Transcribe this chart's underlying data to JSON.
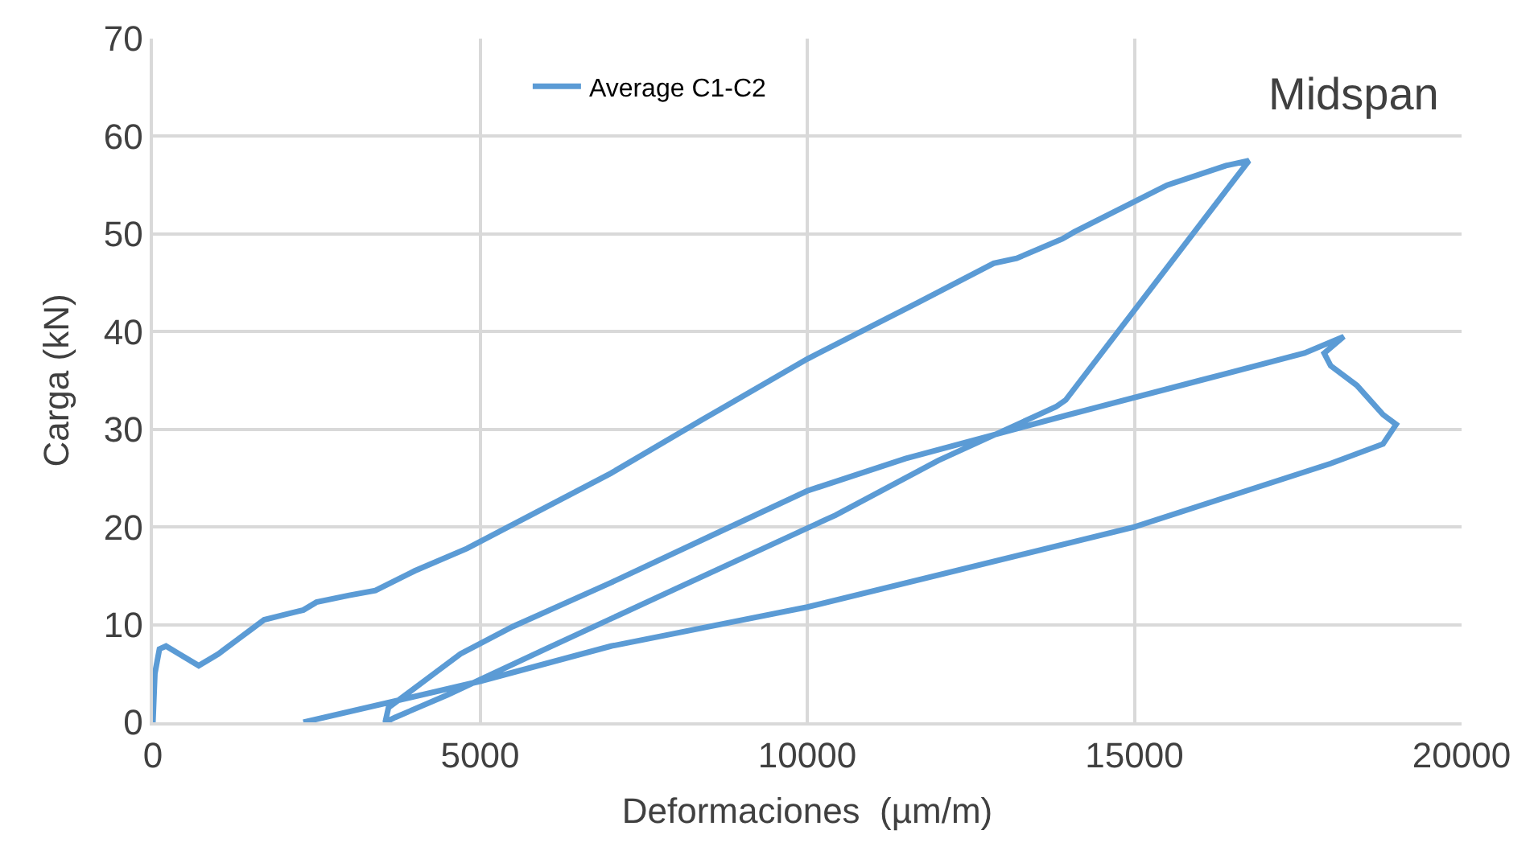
{
  "chart_data": {
    "type": "line",
    "xlabel": "Deformaciones  (µm/m)",
    "ylabel": "Carga (kN)",
    "annotations": [
      "Midspan"
    ],
    "xlim": [
      0,
      20000
    ],
    "xticks": [
      0,
      5000,
      10000,
      15000,
      20000
    ],
    "ylim": [
      0,
      70
    ],
    "yticks": [
      0,
      10,
      20,
      30,
      40,
      50,
      60,
      70
    ],
    "grid": true,
    "legend": "top",
    "marker": "none",
    "line_style": "solid",
    "series": [
      {
        "name": "Average C1-C2",
        "color": "#5b9bd5",
        "x": [
          0,
          30,
          100,
          200,
          400,
          700,
          1000,
          1100,
          1300,
          1500,
          1700,
          2000,
          2300,
          2500,
          3000,
          3400,
          4000,
          4800,
          6000,
          7000,
          8400,
          10000,
          11700,
          12850,
          13200,
          13900,
          14080,
          15500,
          16400,
          16750,
          13950,
          13800,
          12000,
          10430,
          10300,
          8000,
          6000,
          4500,
          3700,
          3550,
          3600,
          3900,
          4300,
          4700,
          5500,
          7000,
          8500,
          10000,
          11500,
          13000,
          14000,
          16000,
          17600,
          18200,
          17900,
          18000,
          18400,
          18800,
          19000,
          18800,
          18000,
          15000,
          10000,
          7000,
          5000,
          2300
        ],
        "values": [
          0,
          5,
          7.5,
          7.8,
          7,
          5.8,
          7,
          7.5,
          8.5,
          9.5,
          10.5,
          11,
          11.5,
          12.3,
          13,
          13.5,
          15.5,
          17.8,
          22,
          25.5,
          31,
          37.2,
          43,
          47,
          47.5,
          49.5,
          50.2,
          55,
          57,
          57.5,
          33,
          32.3,
          26.8,
          21.2,
          20.8,
          13.7,
          7.5,
          2.8,
          0.5,
          0,
          1.5,
          3,
          5,
          7,
          9.8,
          14.3,
          19,
          23.7,
          27,
          29.7,
          31.5,
          35,
          37.8,
          39.5,
          37.8,
          36.5,
          34.5,
          31.5,
          30.5,
          28.5,
          26.5,
          20,
          11.8,
          7.8,
          4.2,
          0
        ]
      }
    ]
  }
}
